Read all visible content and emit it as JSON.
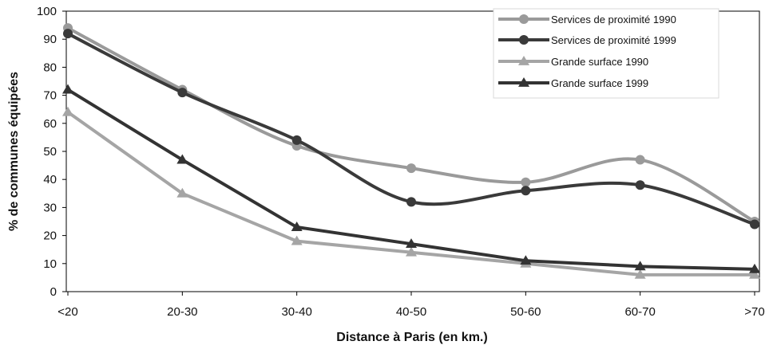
{
  "chart_data": {
    "type": "line",
    "title": "",
    "xlabel": "Distance à Paris (en km.)",
    "ylabel": "% de communes équipées",
    "categories": [
      "<20",
      "20-30",
      "30-40",
      "40-50",
      "50-60",
      "60-70",
      ">70"
    ],
    "ylim": [
      0,
      100
    ],
    "yticks": [
      "0",
      "10",
      "20",
      "30",
      "40",
      "50",
      "60",
      "70",
      "80",
      "90",
      "100"
    ],
    "grid": false,
    "legend_position": "top-right",
    "series": [
      {
        "name": "Services de proximité 1990",
        "values": [
          94,
          72,
          52,
          44,
          39,
          47,
          25
        ],
        "color": "#9a9a9a",
        "marker": "circle"
      },
      {
        "name": "Services de proximité 1999",
        "values": [
          92,
          71,
          54,
          32,
          36,
          38,
          24
        ],
        "color": "#3a3a3a",
        "marker": "circle"
      },
      {
        "name": "Grande surface 1990",
        "values": [
          64,
          35,
          18,
          14,
          10,
          6,
          6
        ],
        "color": "#a5a5a5",
        "marker": "triangle"
      },
      {
        "name": "Grande surface 1999",
        "values": [
          72,
          47,
          23,
          17,
          11,
          9,
          8
        ],
        "color": "#333333",
        "marker": "triangle"
      }
    ]
  }
}
